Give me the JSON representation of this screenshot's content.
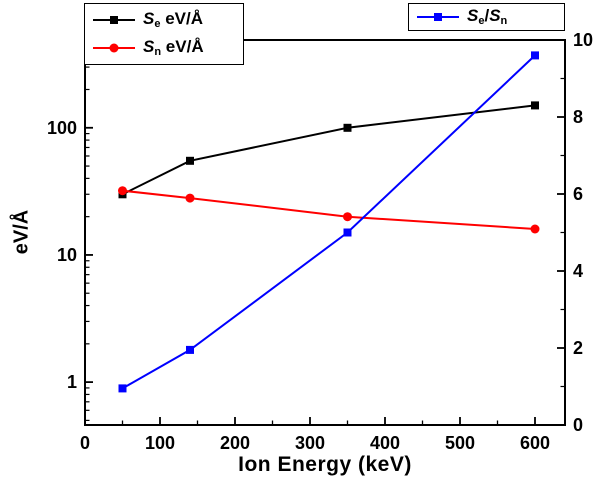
{
  "chart_data": {
    "type": "line",
    "title": "",
    "xlabel": "Ion Energy (keV)",
    "ylabel_left": "eV/Å",
    "x": [
      50,
      140,
      350,
      600
    ],
    "series": [
      {
        "id": "se",
        "name": "Se eV/Å",
        "color": "#000000",
        "marker": "square",
        "axis": "left",
        "values": [
          30,
          55,
          100,
          150
        ]
      },
      {
        "id": "sn",
        "name": "Sn eV/Å",
        "color": "#ff0000",
        "marker": "circle",
        "axis": "left",
        "values": [
          32,
          28,
          20,
          16
        ]
      },
      {
        "id": "se_over_sn",
        "name": "Se/Sn",
        "color": "#0000ff",
        "marker": "square",
        "axis": "right",
        "values": [
          0.95,
          1.95,
          5.0,
          9.6
        ]
      }
    ],
    "xlim": [
      0,
      640
    ],
    "x_ticks": [
      0,
      100,
      200,
      300,
      400,
      500,
      600
    ],
    "x_minor_step": 50,
    "left_axis": {
      "scale": "log",
      "min": 0.46,
      "max": 490,
      "ticks": [
        1,
        10,
        100
      ],
      "tick_labels": [
        "1",
        "10",
        "100"
      ]
    },
    "right_axis": {
      "scale": "linear",
      "min": 0,
      "max": 10,
      "ticks": [
        0,
        2,
        4,
        6,
        8,
        10
      ],
      "minor_ticks": [
        1,
        3,
        5,
        7,
        9
      ]
    },
    "grid": false,
    "legend_position": "top",
    "axis_color": "#000000"
  },
  "legend": {
    "se": {
      "sym": "S",
      "sub": "e",
      "unit": " eV/Å"
    },
    "sn": {
      "sym": "S",
      "sub": "n",
      "unit": " eV/Å"
    },
    "ratio": {
      "sym1": "S",
      "sub1": "e",
      "slash": "/",
      "sym2": "S",
      "sub2": "n"
    }
  }
}
